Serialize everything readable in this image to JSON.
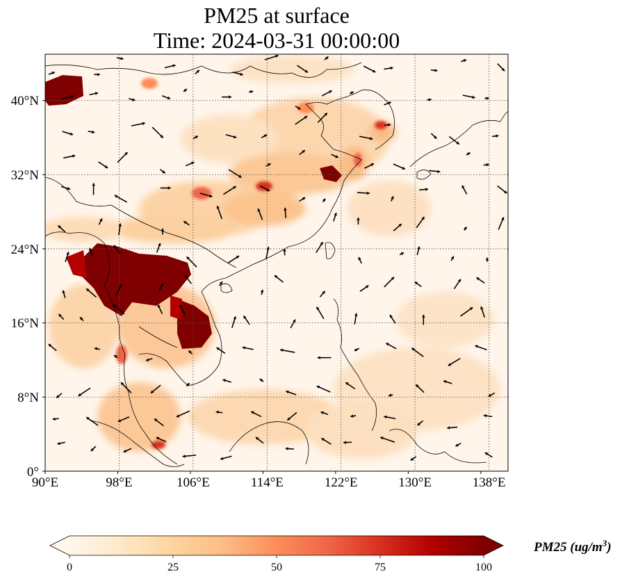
{
  "title": {
    "line1": "PM25 at surface",
    "line2": "Time: 2024-03-31 00:00:00"
  },
  "map": {
    "lon_range": [
      90,
      141
    ],
    "lat_range": [
      0,
      45
    ],
    "lon_ticks": [
      "90°E",
      "98°E",
      "106°E",
      "114°E",
      "122°E",
      "130°E",
      "138°E"
    ],
    "lon_tick_values": [
      90,
      98,
      106,
      114,
      122,
      130,
      138
    ],
    "lat_ticks": [
      "0°",
      "8°N",
      "16°N",
      "24°N",
      "32°N",
      "40°N"
    ],
    "lat_tick_values": [
      0,
      8,
      16,
      24,
      32,
      40
    ],
    "gridlines": "dotted",
    "vectors": "wind arrows"
  },
  "colorbar": {
    "label": "PM25 (ug/m",
    "label_sup": "3",
    "label_close": ")",
    "ticks": [
      "0",
      "25",
      "50",
      "75",
      "100"
    ],
    "tick_values": [
      0,
      25,
      50,
      75,
      100
    ],
    "range": [
      0,
      100
    ],
    "colormap": "OrRd",
    "extend": "both",
    "colors": [
      "#fff7ec",
      "#fee8c8",
      "#fdd49e",
      "#fdbb84",
      "#fc8d59",
      "#ef6548",
      "#d7301f",
      "#b30000",
      "#7f0000"
    ]
  },
  "chart_data": {
    "type": "heatmap",
    "variable": "PM25",
    "level": "surface",
    "time": "2024-03-31 00:00:00",
    "units": "ug/m3",
    "lon_range": [
      90,
      141
    ],
    "lat_range": [
      0,
      45
    ],
    "high_regions": [
      {
        "lon": [
          90,
          94
        ],
        "lat": [
          40,
          42.5
        ],
        "value": 100
      },
      {
        "lon": [
          94,
          104
        ],
        "lat": [
          18,
          24
        ],
        "value": 100
      },
      {
        "lon": [
          104,
          108
        ],
        "lat": [
          13,
          18
        ],
        "value": 100
      },
      {
        "lon": [
          119.5,
          121.5
        ],
        "lat": [
          31,
          32.5
        ],
        "value": 90
      }
    ]
  }
}
